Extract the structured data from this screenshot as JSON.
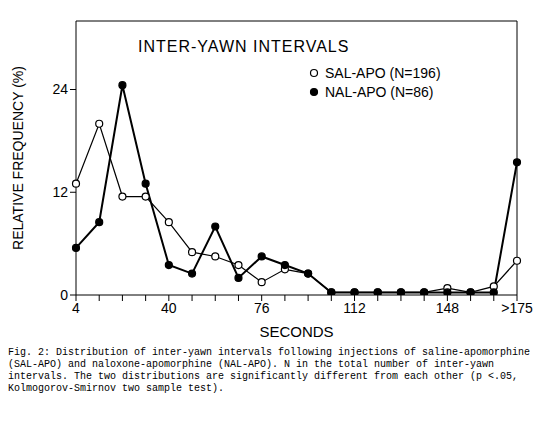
{
  "chart_data": {
    "type": "line",
    "title": "INTER-YAWN INTERVALS",
    "x_label": "SECONDS",
    "y_label": "RELATIVE FREQUENCY (%)",
    "categories": [
      "4",
      null,
      null,
      null,
      "40",
      null,
      null,
      null,
      "76",
      null,
      null,
      null,
      "112",
      null,
      null,
      null,
      "148",
      null,
      null,
      ">175"
    ],
    "series": [
      {
        "name": "SAL-APO (N=196)",
        "color": "#000000",
        "marker": "open_circle",
        "line_style": "solid",
        "values": [
          13,
          20,
          11.5,
          11.5,
          8.5,
          5,
          4.5,
          3.5,
          1.5,
          3,
          2.5,
          0.3,
          0.3,
          0.3,
          0.3,
          0.3,
          0.8,
          0.3,
          1,
          4
        ]
      },
      {
        "name": "NAL-APO (N=86)",
        "color": "#000000",
        "marker": "filled_circle",
        "line_style": "solid",
        "values": [
          5.5,
          8.5,
          24.5,
          13,
          3.5,
          2.5,
          8,
          2,
          4.5,
          3.5,
          2.5,
          0.3,
          0.3,
          0.3,
          0.3,
          0.3,
          0.3,
          0.3,
          0.3,
          15.5
        ]
      }
    ],
    "ylim": [
      0,
      32
    ],
    "yticks": [
      0,
      12,
      24
    ],
    "grid": false,
    "legend": "upper right",
    "caption": "Fig. 2: Distribution of inter-yawn intervals following injections of saline-apomorphine (SAL-APO) and naloxone-apomorphine (NAL-APO).  N in the total number of inter-yawn intervals.  The two distributions are significantly different from each other (p <.05, Kolmogorov-Smirnov two sample test)."
  }
}
